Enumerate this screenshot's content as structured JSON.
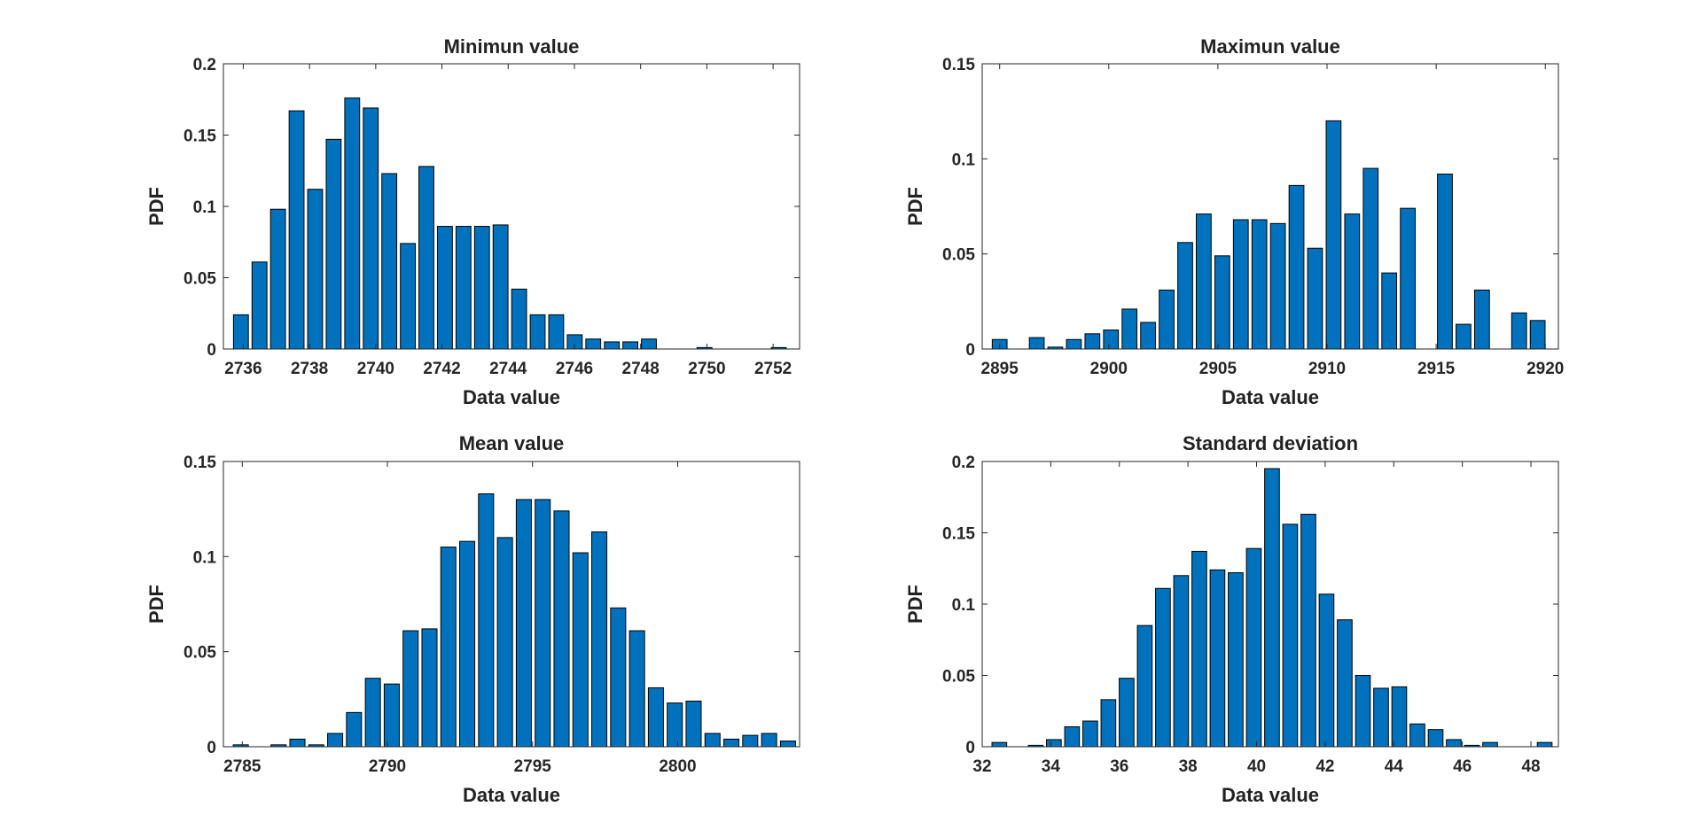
{
  "chart_data": [
    {
      "type": "bar",
      "title": "Minimun value",
      "xlabel": "Data value",
      "ylabel": "PDF",
      "xlim": [
        2735.4,
        2752.8
      ],
      "ylim": [
        0,
        0.2
      ],
      "xticks": [
        "2736",
        "2738",
        "2740",
        "2742",
        "2744",
        "2746",
        "2748",
        "2750",
        "2752"
      ],
      "xtick_values": [
        2736,
        2738,
        2740,
        2742,
        2744,
        2746,
        2748,
        2750,
        2752
      ],
      "yticks": [
        "0",
        "0.05",
        "0.1",
        "0.15",
        "0.2"
      ],
      "ytick_values": [
        0,
        0.05,
        0.1,
        0.15,
        0.2
      ],
      "bar_width": 0.45,
      "x": [
        2735.93,
        2736.49,
        2737.05,
        2737.61,
        2738.17,
        2738.73,
        2739.29,
        2739.85,
        2740.41,
        2740.97,
        2741.53,
        2742.09,
        2742.65,
        2743.21,
        2743.77,
        2744.33,
        2744.89,
        2745.45,
        2746.01,
        2746.57,
        2747.13,
        2747.69,
        2748.25,
        2748.81,
        2749.37,
        2749.93,
        2750.49,
        2751.05,
        2751.61,
        2752.17
      ],
      "values": [
        0.024,
        0.061,
        0.098,
        0.167,
        0.112,
        0.147,
        0.176,
        0.169,
        0.123,
        0.074,
        0.128,
        0.086,
        0.086,
        0.086,
        0.087,
        0.042,
        0.024,
        0.024,
        0.01,
        0.007,
        0.005,
        0.005,
        0.007,
        0,
        0,
        0.001,
        0,
        0,
        0,
        0.001
      ]
    },
    {
      "type": "bar",
      "title": "Maximun value",
      "xlabel": "Data value",
      "ylabel": "PDF",
      "xlim": [
        2894.2,
        2920.6
      ],
      "ylim": [
        0,
        0.15
      ],
      "xticks": [
        "2895",
        "2900",
        "2905",
        "2910",
        "2915",
        "2920"
      ],
      "xtick_values": [
        2895,
        2900,
        2905,
        2910,
        2915,
        2920
      ],
      "yticks": [
        "0",
        "0.05",
        "0.1",
        "0.15"
      ],
      "ytick_values": [
        0,
        0.05,
        0.1,
        0.15
      ],
      "bar_width": 0.68,
      "x": [
        2895.0,
        2895.85,
        2896.7,
        2897.55,
        2898.4,
        2899.25,
        2900.1,
        2900.95,
        2901.8,
        2902.65,
        2903.5,
        2904.35,
        2905.2,
        2906.05,
        2906.9,
        2907.75,
        2908.6,
        2909.45,
        2910.3,
        2911.15,
        2912.0,
        2912.85,
        2913.7,
        2914.55,
        2915.4,
        2916.25,
        2917.1,
        2917.95,
        2918.8,
        2919.65
      ],
      "values": [
        0.005,
        0,
        0.006,
        0.001,
        0.005,
        0.008,
        0.01,
        0.021,
        0.014,
        0.031,
        0.056,
        0.071,
        0.049,
        0.068,
        0.068,
        0.066,
        0.086,
        0.053,
        0.12,
        0.071,
        0.095,
        0.04,
        0.074,
        0,
        0.092,
        0.013,
        0.031,
        0,
        0.019,
        0.015
      ]
    },
    {
      "type": "bar",
      "title": "Mean value",
      "xlabel": "Data value",
      "ylabel": "PDF",
      "xlim": [
        2784.35,
        2804.2
      ],
      "ylim": [
        0,
        0.15
      ],
      "xticks": [
        "2785",
        "2790",
        "2795",
        "2800"
      ],
      "xtick_values": [
        2785,
        2790,
        2795,
        2800
      ],
      "yticks": [
        "0",
        "0.05",
        "0.1",
        "0.15"
      ],
      "ytick_values": [
        0,
        0.05,
        0.1,
        0.15
      ],
      "bar_width": 0.52,
      "x": [
        2784.95,
        2785.6,
        2786.25,
        2786.9,
        2787.55,
        2788.2,
        2788.85,
        2789.5,
        2790.15,
        2790.8,
        2791.45,
        2792.1,
        2792.75,
        2793.4,
        2794.05,
        2794.7,
        2795.35,
        2796.0,
        2796.65,
        2797.3,
        2797.95,
        2798.6,
        2799.25,
        2799.9,
        2800.55,
        2801.2,
        2801.85,
        2802.5,
        2803.15,
        2803.8
      ],
      "values": [
        0.001,
        0,
        0.001,
        0.004,
        0.001,
        0.007,
        0.018,
        0.036,
        0.033,
        0.061,
        0.062,
        0.105,
        0.108,
        0.133,
        0.11,
        0.13,
        0.13,
        0.124,
        0.102,
        0.113,
        0.073,
        0.061,
        0.031,
        0.023,
        0.024,
        0.007,
        0.004,
        0.006,
        0.007,
        0.003
      ]
    },
    {
      "type": "bar",
      "title": "Standard deviation",
      "xlabel": "Data value",
      "ylabel": "PDF",
      "xlim": [
        32,
        48.8
      ],
      "ylim": [
        0,
        0.2
      ],
      "xticks": [
        "32",
        "34",
        "36",
        "38",
        "40",
        "42",
        "44",
        "46",
        "48"
      ],
      "xtick_values": [
        32,
        34,
        36,
        38,
        40,
        42,
        44,
        46,
        48
      ],
      "yticks": [
        "0",
        "0.05",
        "0.1",
        "0.15",
        "0.2"
      ],
      "ytick_values": [
        0,
        0.05,
        0.1,
        0.15,
        0.2
      ],
      "bar_width": 0.43,
      "x": [
        32.5,
        33.03,
        33.56,
        34.09,
        34.62,
        35.15,
        35.68,
        36.21,
        36.74,
        37.27,
        37.8,
        38.33,
        38.86,
        39.39,
        39.92,
        40.45,
        40.98,
        41.51,
        42.04,
        42.57,
        43.1,
        43.63,
        44.16,
        44.69,
        45.22,
        45.75,
        46.28,
        46.81,
        47.34,
        47.87,
        48.4
      ],
      "values": [
        0.003,
        0,
        0.001,
        0.005,
        0.014,
        0.018,
        0.033,
        0.048,
        0.085,
        0.111,
        0.12,
        0.137,
        0.124,
        0.122,
        0.139,
        0.195,
        0.156,
        0.163,
        0.107,
        0.089,
        0.05,
        0.041,
        0.042,
        0.016,
        0.012,
        0.005,
        0.001,
        0.003,
        0,
        0,
        0.003
      ]
    }
  ]
}
